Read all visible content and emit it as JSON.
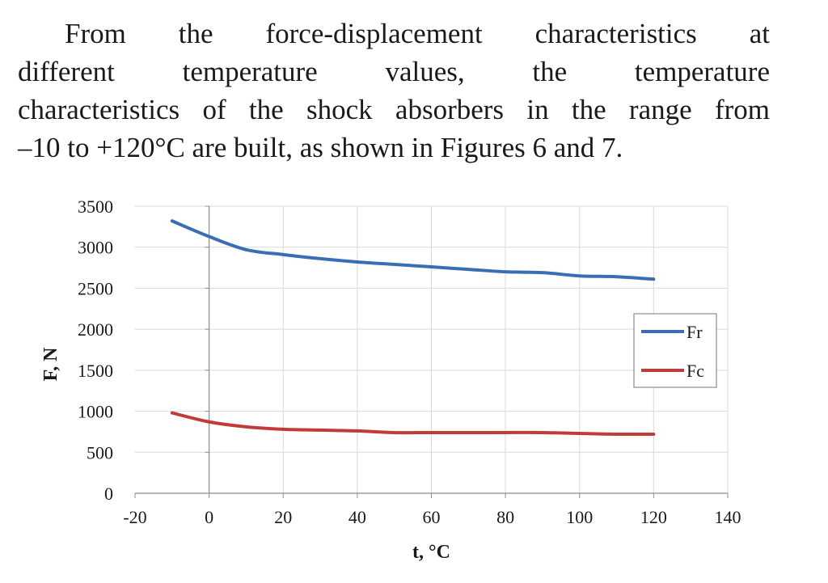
{
  "paragraph": {
    "lines": [
      "From the force-displacement characteristics at",
      "different temperature values, the temperature",
      "characteristics of the shock absorbers in the range from",
      "–10 to +120°C are built, as shown in Figures 6 and 7."
    ]
  },
  "chart_data": {
    "type": "line",
    "xlabel": "t, °C",
    "ylabel": "F, N",
    "xlim": [
      -20,
      140
    ],
    "ylim": [
      0,
      3500
    ],
    "xticks": [
      "-20",
      "0",
      "20",
      "40",
      "60",
      "80",
      "100",
      "120",
      "140"
    ],
    "yticks": [
      "0",
      "500",
      "1000",
      "1500",
      "2000",
      "2500",
      "3000",
      "3500"
    ],
    "grid": true,
    "legend_position": "right",
    "series": [
      {
        "name": "Fr",
        "color": "#3a6eb3",
        "x": [
          -10,
          0,
          10,
          20,
          30,
          40,
          50,
          60,
          70,
          80,
          90,
          100,
          110,
          120
        ],
        "y": [
          3320,
          3130,
          2970,
          2910,
          2860,
          2820,
          2790,
          2760,
          2730,
          2700,
          2690,
          2650,
          2640,
          2610
        ]
      },
      {
        "name": "Fc",
        "color": "#c23b3b",
        "x": [
          -10,
          0,
          10,
          20,
          30,
          40,
          50,
          60,
          70,
          80,
          90,
          100,
          110,
          120
        ],
        "y": [
          980,
          870,
          810,
          780,
          770,
          760,
          740,
          740,
          740,
          740,
          740,
          730,
          720,
          720
        ]
      }
    ]
  }
}
